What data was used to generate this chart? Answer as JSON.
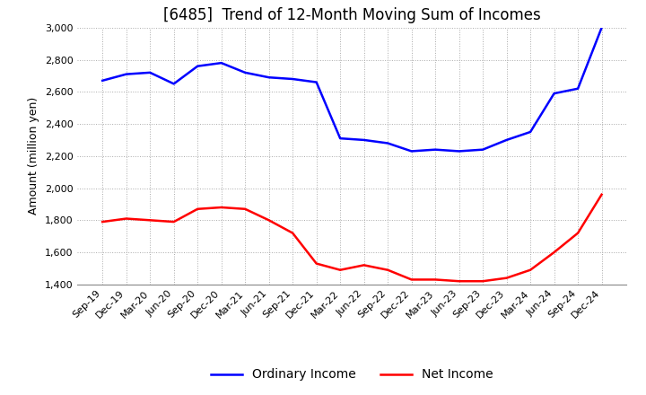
{
  "title": "[6485]  Trend of 12-Month Moving Sum of Incomes",
  "ylabel": "Amount (million yen)",
  "ylim": [
    1400,
    3000
  ],
  "yticks": [
    1400,
    1600,
    1800,
    2000,
    2200,
    2400,
    2600,
    2800,
    3000
  ],
  "x_labels": [
    "Sep-19",
    "Dec-19",
    "Mar-20",
    "Jun-20",
    "Sep-20",
    "Dec-20",
    "Mar-21",
    "Jun-21",
    "Sep-21",
    "Dec-21",
    "Mar-22",
    "Jun-22",
    "Sep-22",
    "Dec-22",
    "Mar-23",
    "Jun-23",
    "Sep-23",
    "Dec-23",
    "Mar-24",
    "Jun-24",
    "Sep-24",
    "Dec-24"
  ],
  "ordinary_income": [
    2670,
    2710,
    2720,
    2650,
    2760,
    2780,
    2720,
    2690,
    2680,
    2660,
    2310,
    2300,
    2280,
    2230,
    2240,
    2230,
    2240,
    2300,
    2350,
    2590,
    2620,
    3000
  ],
  "net_income": [
    1790,
    1810,
    1800,
    1790,
    1870,
    1880,
    1870,
    1800,
    1720,
    1530,
    1490,
    1520,
    1490,
    1430,
    1430,
    1420,
    1420,
    1440,
    1490,
    1600,
    1720,
    1960
  ],
  "ordinary_color": "#0000FF",
  "net_color": "#FF0000",
  "background_color": "#FFFFFF",
  "grid_color": "#AAAAAA",
  "title_fontsize": 12,
  "label_fontsize": 9,
  "tick_fontsize": 8
}
